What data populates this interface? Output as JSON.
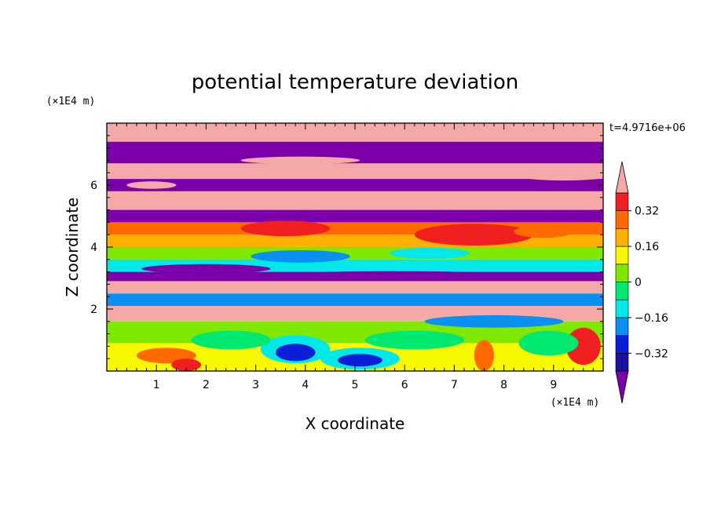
{
  "chart_data": {
    "type": "heatmap",
    "title": "potential temperature deviation",
    "xlabel": "X coordinate",
    "ylabel": "Z coordinate",
    "x_unit": "(×1E4 m)",
    "y_unit": "(×1E4 m)",
    "time_label": "t=4.9716e+06",
    "xlim": [
      0,
      10
    ],
    "ylim": [
      0,
      8
    ],
    "x_ticks": [
      "1",
      "2",
      "3",
      "4",
      "5",
      "6",
      "7",
      "8",
      "9"
    ],
    "y_ticks": [
      "2",
      "4",
      "6"
    ],
    "x_tick_values": [
      1,
      2,
      3,
      4,
      5,
      6,
      7,
      8,
      9
    ],
    "y_tick_values": [
      2,
      4,
      6
    ],
    "colorbar": {
      "labels": [
        "0.32",
        "0.16",
        "0",
        "−0.16",
        "−0.32"
      ],
      "label_values": [
        0.32,
        0.16,
        0,
        -0.16,
        -0.32
      ],
      "levels": [
        -0.4,
        -0.32,
        -0.24,
        -0.16,
        -0.08,
        0,
        0.08,
        0.16,
        0.24,
        0.32,
        0.4
      ],
      "under_color": "#7B00AA",
      "over_color": "#F5A8A8",
      "colors": [
        "#1A10A0",
        "#0A1ED8",
        "#0A90F0",
        "#00E8E8",
        "#00E870",
        "#80E800",
        "#F8F800",
        "#FFB000",
        "#FF6A00",
        "#F02020"
      ]
    },
    "bands": [
      {
        "z_top": 8.0,
        "z_bottom": 7.4,
        "level": "over"
      },
      {
        "z_top": 7.4,
        "z_bottom": 6.7,
        "level": "under"
      },
      {
        "z_top": 6.7,
        "z_bottom": 6.2,
        "level": "over"
      },
      {
        "z_top": 6.2,
        "z_bottom": 5.8,
        "level": "under"
      },
      {
        "z_top": 5.8,
        "z_bottom": 5.2,
        "level": "over"
      },
      {
        "z_top": 5.2,
        "z_bottom": 4.8,
        "level": "under"
      },
      {
        "z_top": 4.8,
        "z_bottom": 4.4,
        "level": 0.3
      },
      {
        "z_top": 4.4,
        "z_bottom": 4.0,
        "level": 0.2
      },
      {
        "z_top": 4.0,
        "z_bottom": 3.6,
        "level": 0.05
      },
      {
        "z_top": 3.6,
        "z_bottom": 3.2,
        "level": -0.1
      },
      {
        "z_top": 3.2,
        "z_bottom": 2.9,
        "level": "under"
      },
      {
        "z_top": 2.9,
        "z_bottom": 2.5,
        "level": "over"
      },
      {
        "z_top": 2.5,
        "z_bottom": 2.1,
        "level": -0.2
      },
      {
        "z_top": 2.1,
        "z_bottom": 1.6,
        "level": "over"
      },
      {
        "z_top": 1.6,
        "z_bottom": 0.9,
        "level": 0.0
      },
      {
        "z_top": 0.9,
        "z_bottom": 0.0,
        "level": 0.1
      }
    ],
    "blobs": [
      {
        "x": 7.4,
        "z": 4.4,
        "rx": 1.2,
        "rz": 0.35,
        "level": 0.36
      },
      {
        "x": 3.6,
        "z": 4.6,
        "rx": 0.9,
        "rz": 0.25,
        "level": 0.32
      },
      {
        "x": 8.8,
        "z": 4.5,
        "rx": 0.6,
        "rz": 0.2,
        "level": 0.24
      },
      {
        "x": 3.9,
        "z": 3.7,
        "rx": 1.0,
        "rz": 0.2,
        "level": -0.24
      },
      {
        "x": 6.5,
        "z": 3.8,
        "rx": 0.8,
        "rz": 0.18,
        "level": -0.16
      },
      {
        "x": 2.0,
        "z": 3.3,
        "rx": 1.3,
        "rz": 0.15,
        "level": "under"
      },
      {
        "x": 5.8,
        "z": 3.1,
        "rx": 2.4,
        "rz": 0.12,
        "level": "under"
      },
      {
        "x": 4.3,
        "z": 2.7,
        "rx": 1.6,
        "rz": 0.14,
        "level": "over"
      },
      {
        "x": 7.8,
        "z": 1.6,
        "rx": 1.4,
        "rz": 0.2,
        "level": -0.24
      },
      {
        "x": 3.8,
        "z": 0.7,
        "rx": 0.7,
        "rz": 0.45,
        "level": -0.16
      },
      {
        "x": 3.8,
        "z": 0.6,
        "rx": 0.4,
        "rz": 0.28,
        "level": -0.32
      },
      {
        "x": 5.1,
        "z": 0.4,
        "rx": 0.8,
        "rz": 0.35,
        "level": -0.16
      },
      {
        "x": 5.1,
        "z": 0.35,
        "rx": 0.45,
        "rz": 0.2,
        "level": -0.32
      },
      {
        "x": 1.2,
        "z": 0.5,
        "rx": 0.6,
        "rz": 0.25,
        "level": 0.24
      },
      {
        "x": 1.6,
        "z": 0.2,
        "rx": 0.3,
        "rz": 0.2,
        "level": 0.32
      },
      {
        "x": 7.6,
        "z": 0.5,
        "rx": 0.2,
        "rz": 0.5,
        "level": 0.24
      },
      {
        "x": 9.6,
        "z": 0.8,
        "rx": 0.35,
        "rz": 0.6,
        "level": 0.32
      },
      {
        "x": 8.9,
        "z": 0.9,
        "rx": 0.6,
        "rz": 0.4,
        "level": -0.08
      },
      {
        "x": 6.2,
        "z": 1.0,
        "rx": 1.0,
        "rz": 0.3,
        "level": -0.08
      },
      {
        "x": 2.5,
        "z": 1.0,
        "rx": 0.8,
        "rz": 0.3,
        "level": -0.08
      },
      {
        "x": 0.9,
        "z": 6.0,
        "rx": 0.5,
        "rz": 0.12,
        "level": "over"
      },
      {
        "x": 3.9,
        "z": 6.8,
        "rx": 1.2,
        "rz": 0.12,
        "level": "over"
      },
      {
        "x": 9.2,
        "z": 6.3,
        "rx": 0.9,
        "rz": 0.15,
        "level": "over"
      }
    ]
  }
}
